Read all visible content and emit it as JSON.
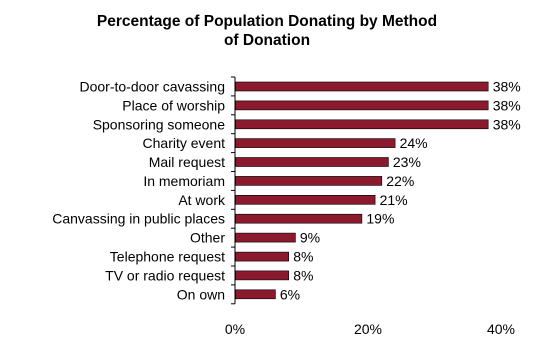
{
  "chart_data": {
    "type": "bar",
    "orientation": "horizontal",
    "title_lines": [
      "Percentage of Population Donating by Method",
      "of Donation"
    ],
    "categories": [
      "Door-to-door cavassing",
      "Place of worship",
      "Sponsoring someone",
      "Charity event",
      "Mail request",
      "In memoriam",
      "At work",
      "Canvassing in public places",
      "Other",
      "Telephone request",
      "TV or radio request",
      "On own"
    ],
    "values": [
      38,
      38,
      38,
      24,
      23,
      22,
      21,
      19,
      9,
      8,
      8,
      6
    ],
    "value_labels": [
      "38%",
      "38%",
      "38%",
      "24%",
      "23%",
      "22%",
      "21%",
      "19%",
      "9%",
      "8%",
      "8%",
      "6%"
    ],
    "x_ticks": [
      0,
      20,
      40
    ],
    "x_tick_labels": [
      "0%",
      "20%",
      "40%"
    ],
    "xlim": [
      0,
      40
    ],
    "bar_color": "#8b1a2e",
    "grid": false,
    "legend": "none"
  }
}
